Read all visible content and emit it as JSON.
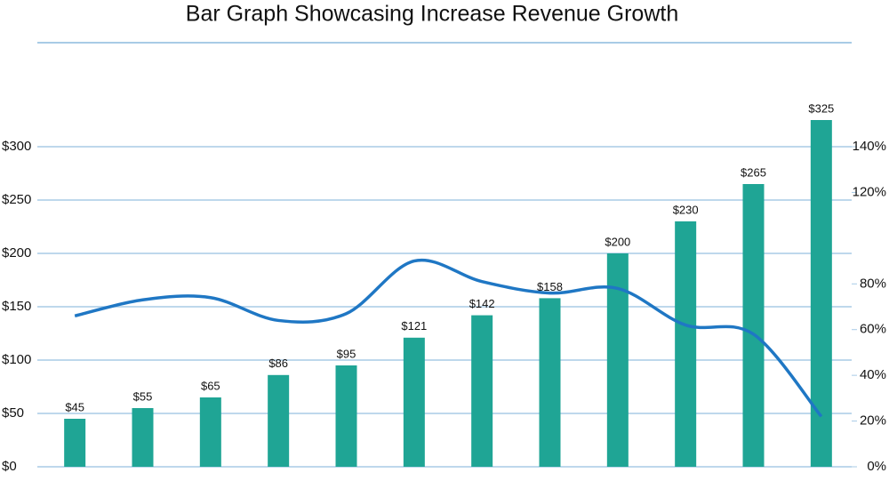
{
  "chart_data": {
    "type": "bar",
    "title": "Bar Graph Showcasing Increase Revenue Growth",
    "categories": [
      null,
      null,
      null,
      null,
      null,
      null,
      null,
      null,
      null,
      null,
      null,
      null
    ],
    "series": [
      {
        "type": "bar",
        "color": "#1fa595",
        "values": [
          45,
          55,
          65,
          86,
          95,
          121,
          142,
          158,
          200,
          230,
          265,
          325
        ],
        "value_labels": [
          "$45",
          "$55",
          "$65",
          "$86",
          "$95",
          "$121",
          "$142",
          "$158",
          "$200",
          "$230",
          "$265",
          "$325"
        ]
      },
      {
        "type": "line",
        "axis": "y2",
        "color": "#1f77c4",
        "values": [
          66,
          73,
          74,
          64,
          67,
          90,
          81,
          76,
          78,
          62,
          58,
          22
        ]
      }
    ],
    "ylim": [
      0,
      300
    ],
    "yticks": [
      {
        "value": 0,
        "label": "$0"
      },
      {
        "value": 50,
        "label": "$50"
      },
      {
        "value": 100,
        "label": "$100"
      },
      {
        "value": 150,
        "label": "$150"
      },
      {
        "value": 200,
        "label": "$200"
      },
      {
        "value": 250,
        "label": "$250"
      },
      {
        "value": 300,
        "label": "$300"
      }
    ],
    "y2lim": [
      0,
      140
    ],
    "y2ticks": [
      {
        "value": 0,
        "label": "0%"
      },
      {
        "value": 20,
        "label": "20%"
      },
      {
        "value": 40,
        "label": "40%"
      },
      {
        "value": 60,
        "label": "60%"
      },
      {
        "value": 80,
        "label": "80%"
      },
      {
        "value": 120,
        "label": "120%"
      },
      {
        "value": 140,
        "label": "140%"
      }
    ],
    "grid": true
  }
}
